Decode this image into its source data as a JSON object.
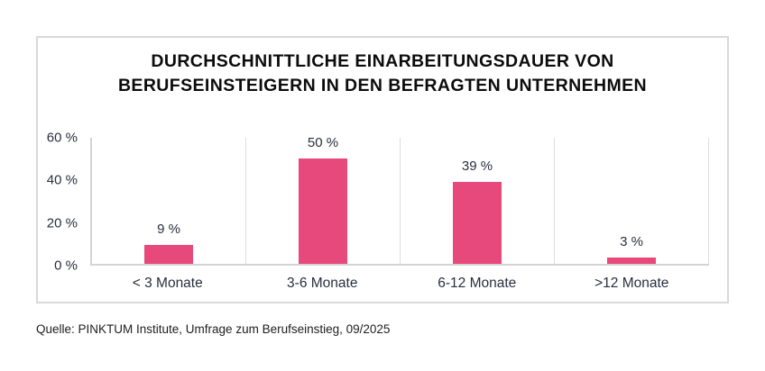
{
  "chart_data": {
    "type": "bar",
    "title": "Durchschnittliche Einarbeitungsdauer von Berufseinsteigern in den befragten Unternehmen",
    "title_lines": [
      "DURCHSCHNITTLICHE EINARBEITUNGSDAUER VON",
      "BERUFSEINSTEIGERN IN DEN BEFRAGTEN UNTERNEHMEN"
    ],
    "categories": [
      "< 3 Monate",
      "3-6 Monate",
      "6-12 Monate",
      ">12 Monate"
    ],
    "values": [
      9,
      50,
      39,
      3
    ],
    "value_labels": [
      "9 %",
      "50 %",
      "39 %",
      "3 %"
    ],
    "y_tick_values": [
      0,
      20,
      40,
      60
    ],
    "y_tick_labels": [
      "0 %",
      "20 %",
      "40 %",
      "60 %"
    ],
    "ylim": [
      0,
      60
    ],
    "bar_color": "#e8497d",
    "grid": "vertical category separators",
    "legend": "none",
    "xlabel": "",
    "ylabel": ""
  },
  "source": "Quelle: PINKTUM Institute, Umfrage zum Berufseinstieg, 09/2025"
}
